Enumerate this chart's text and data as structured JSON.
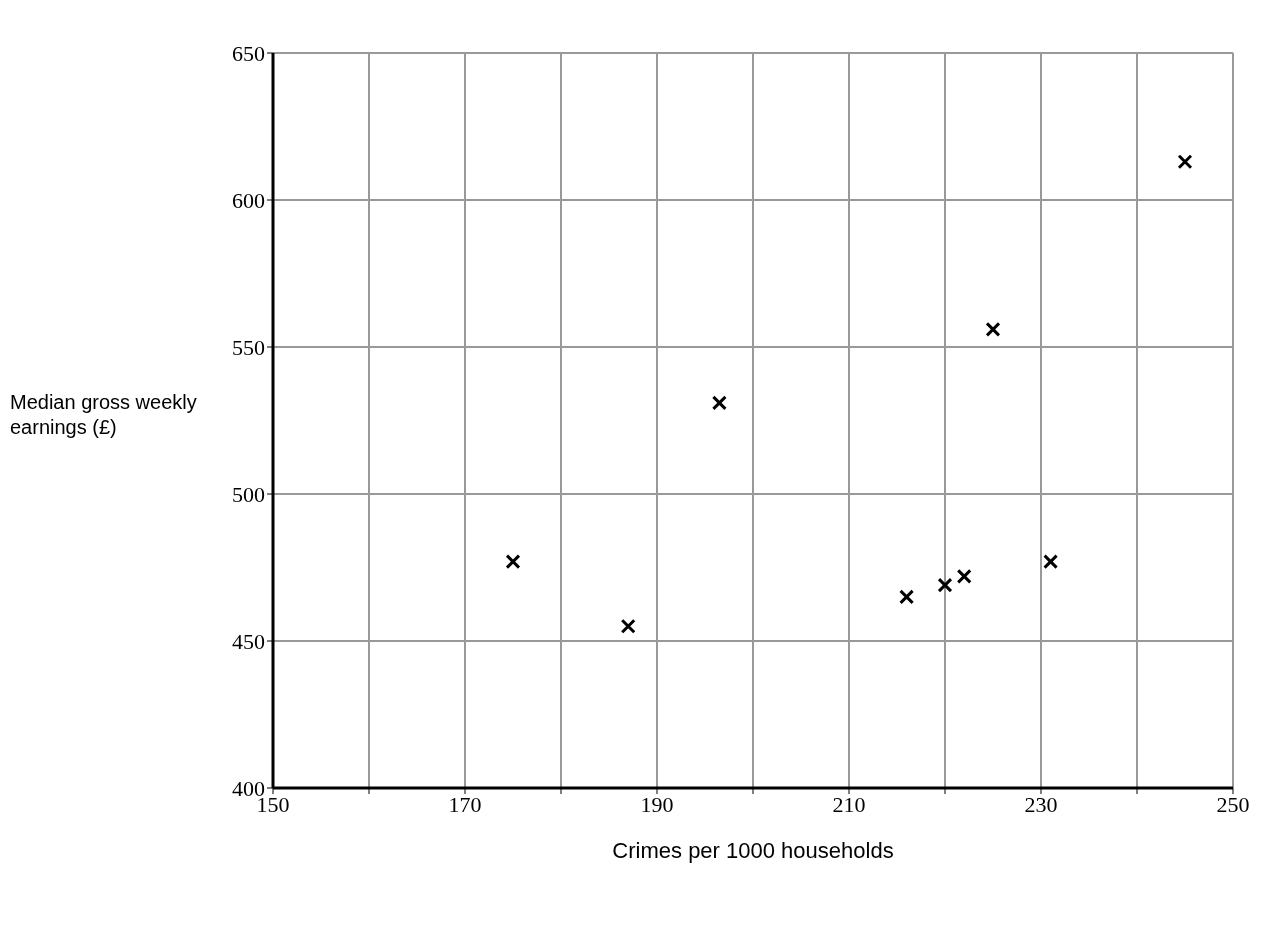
{
  "chart_data": {
    "type": "scatter",
    "xlabel": "Crimes per 1000 households",
    "ylabel": "Median gross weekly earnings (£)",
    "x": [
      175,
      187,
      196.5,
      216,
      220,
      222,
      225,
      231,
      245
    ],
    "values": [
      477,
      455,
      531,
      465,
      469,
      472,
      556,
      477,
      613
    ],
    "color": "#000000",
    "marker": "cross",
    "grid": true,
    "xlim": [
      150,
      250
    ],
    "xticks": [
      150,
      {
        "value": 160,
        "label": null
      },
      170,
      {
        "value": 180,
        "label": null
      },
      190,
      {
        "value": 200,
        "label": null
      },
      210,
      {
        "value": 220,
        "label": null
      },
      230,
      {
        "value": 240,
        "label": null
      },
      250
    ],
    "ylim": [
      400,
      650
    ],
    "yticks": [
      400,
      450,
      500,
      550,
      600,
      650
    ]
  }
}
